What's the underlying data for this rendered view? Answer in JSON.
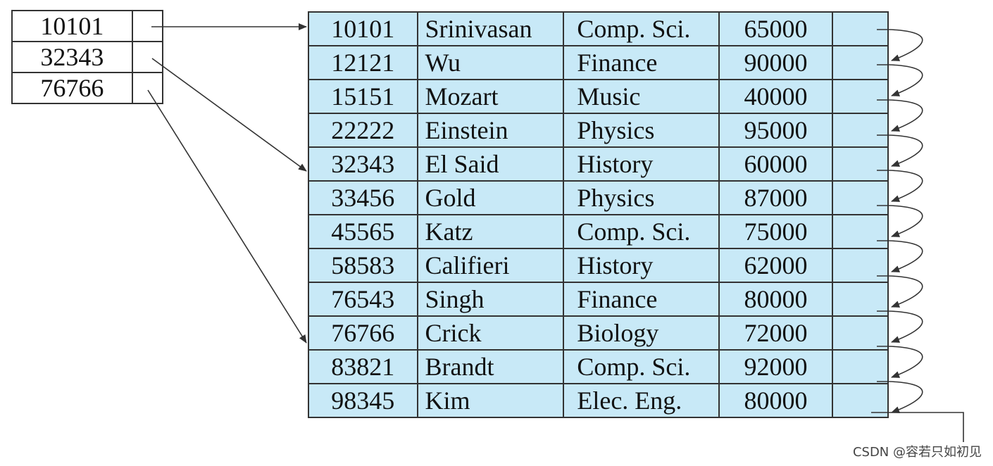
{
  "index": {
    "keys": [
      "10101",
      "32343",
      "76766"
    ]
  },
  "file": {
    "records": [
      {
        "id": "10101",
        "name": "Srinivasan",
        "dept": "Comp. Sci.",
        "salary": "65000"
      },
      {
        "id": "12121",
        "name": "Wu",
        "dept": "Finance",
        "salary": "90000"
      },
      {
        "id": "15151",
        "name": "Mozart",
        "dept": "Music",
        "salary": "40000"
      },
      {
        "id": "22222",
        "name": "Einstein",
        "dept": "Physics",
        "salary": "95000"
      },
      {
        "id": "32343",
        "name": "El Said",
        "dept": "History",
        "salary": "60000"
      },
      {
        "id": "33456",
        "name": "Gold",
        "dept": "Physics",
        "salary": "87000"
      },
      {
        "id": "45565",
        "name": "Katz",
        "dept": "Comp. Sci.",
        "salary": "75000"
      },
      {
        "id": "58583",
        "name": "Califieri",
        "dept": "History",
        "salary": "62000"
      },
      {
        "id": "76543",
        "name": "Singh",
        "dept": "Finance",
        "salary": "80000"
      },
      {
        "id": "76766",
        "name": "Crick",
        "dept": "Biology",
        "salary": "72000"
      },
      {
        "id": "83821",
        "name": "Brandt",
        "dept": "Comp. Sci.",
        "salary": "92000"
      },
      {
        "id": "98345",
        "name": "Kim",
        "dept": "Elec. Eng.",
        "salary": "80000"
      }
    ]
  },
  "watermark": "CSDN @容若只如初见",
  "colors": {
    "record_fill": "#c8e9f7",
    "stroke": "#333333"
  }
}
